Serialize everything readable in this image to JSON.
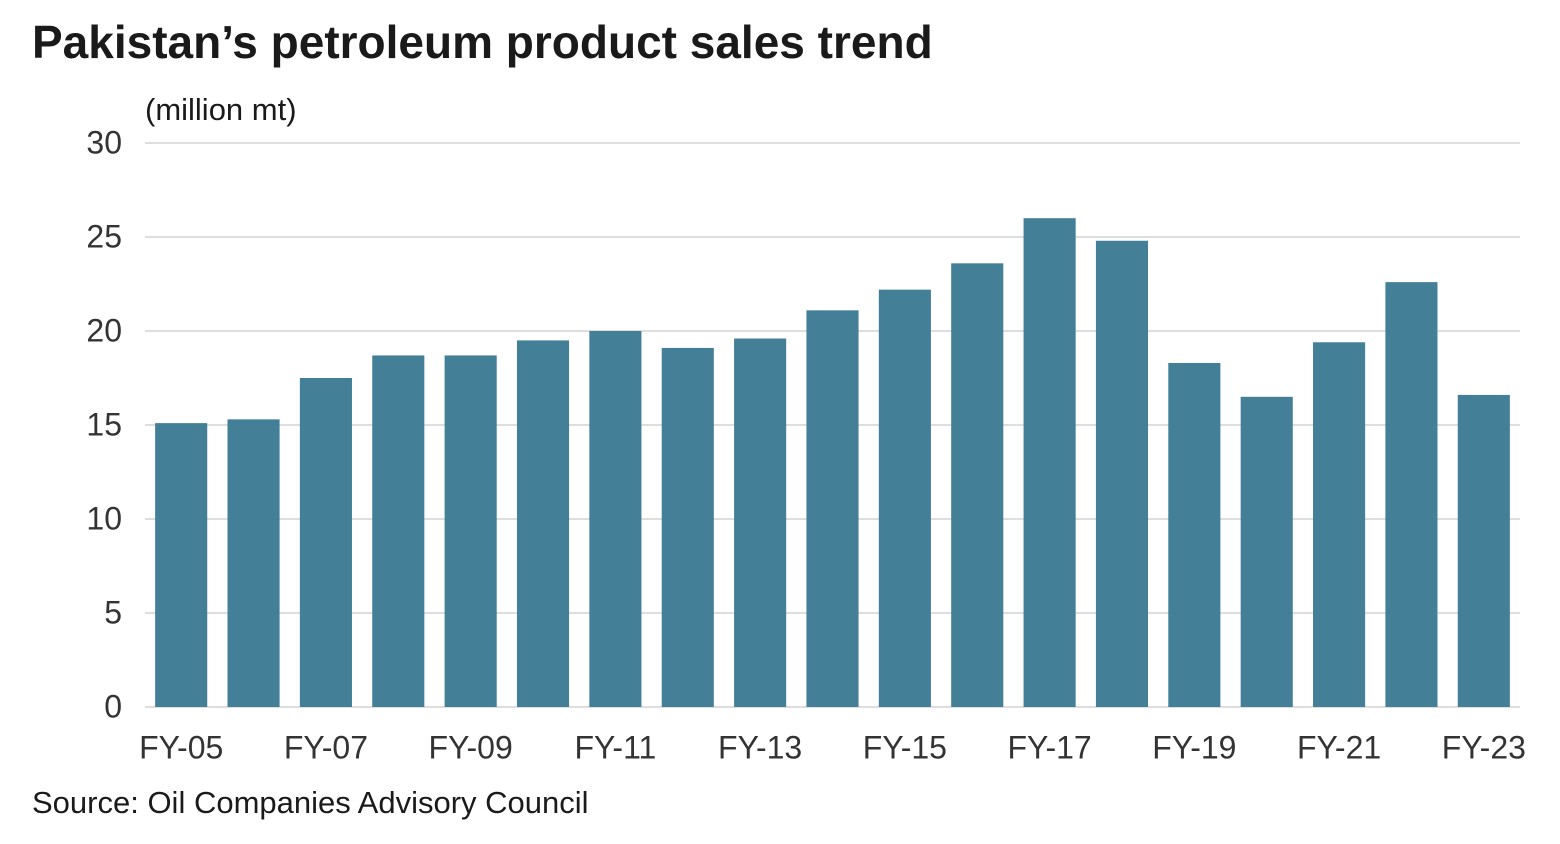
{
  "chart_data": {
    "type": "bar",
    "title": "Pakistan’s petroleum product sales trend",
    "y_label": "(million mt)",
    "source": "Source: Oil Companies Advisory Council",
    "categories": [
      "FY-05",
      null,
      "FY-07",
      null,
      "FY-09",
      null,
      "FY-11",
      null,
      "FY-13",
      null,
      "FY-15",
      null,
      "FY-17",
      null,
      "FY-19",
      null,
      "FY-21",
      null,
      "FY-23"
    ],
    "values": [
      15.1,
      15.3,
      17.5,
      18.7,
      18.7,
      19.5,
      20.0,
      19.1,
      19.6,
      21.1,
      22.2,
      23.6,
      26.0,
      24.8,
      18.3,
      16.5,
      19.4,
      22.6,
      16.6
    ],
    "color": "#437f97",
    "ylim": [
      0,
      30
    ],
    "yticks": [
      0,
      5,
      10,
      15,
      20,
      25,
      30
    ],
    "grid": true
  }
}
